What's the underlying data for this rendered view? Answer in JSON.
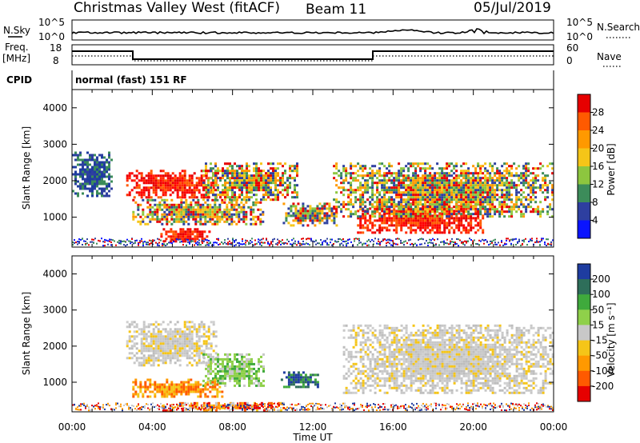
{
  "header": {
    "station": "Christmas Valley West (fitACF)",
    "beam": "Beam 11",
    "date": "05/Jul/2019"
  },
  "strips": {
    "nsky_label": "N.Sky",
    "nsky_ticks": [
      "10^5",
      "10^0"
    ],
    "nsearch_label": "N.Search",
    "nsearch_ticks": [
      "10^5",
      "10^0"
    ],
    "freq_label": "Freq.",
    "freq_unit": "[MHz]",
    "freq_ticks": [
      "18",
      "8"
    ],
    "nave_label": "Nave",
    "nave_ticks": [
      "60",
      "0"
    ],
    "cpid_label": "CPID",
    "cpid_value": "normal (fast) 151 RF"
  },
  "chart_data": [
    {
      "type": "heatmap",
      "name": "power",
      "ylabel": "Slant Range [km]",
      "ylim": [
        180,
        4500
      ],
      "yticks": [
        "4000",
        "3000",
        "2000",
        "1000"
      ],
      "xlabel": "",
      "colorbar_label": "Power [dB]",
      "colorbar_ticks": [
        "28",
        "24",
        "20",
        "16",
        "12",
        "8",
        "4"
      ],
      "colorbar_colors": [
        "#e60000",
        "#ff5a00",
        "#ff9900",
        "#f5c518",
        "#8dc63f",
        "#3c8c5a",
        "#2e3fa0",
        "#0a14ff"
      ],
      "echo_regions": [
        {
          "t": [
            2.7,
            7.2
          ],
          "r": [
            1550,
            2300
          ],
          "level": "high"
        },
        {
          "t": [
            4.4,
            6.8
          ],
          "r": [
            350,
            700
          ],
          "level": "high"
        },
        {
          "t": [
            14.2,
            20.5
          ],
          "r": [
            550,
            1400
          ],
          "level": "high"
        },
        {
          "t": [
            3.0,
            9.5
          ],
          "r": [
            800,
            1500
          ],
          "level": "mid"
        },
        {
          "t": [
            6.5,
            11.2
          ],
          "r": [
            1500,
            2500
          ],
          "level": "mid"
        },
        {
          "t": [
            10.5,
            13.2
          ],
          "r": [
            800,
            1400
          ],
          "level": "mid"
        },
        {
          "t": [
            13.0,
            24.0
          ],
          "r": [
            1000,
            2500
          ],
          "level": "mid"
        },
        {
          "t": [
            0.0,
            2.0
          ],
          "r": [
            1600,
            2800
          ],
          "level": "low"
        }
      ]
    },
    {
      "type": "heatmap",
      "name": "velocity",
      "ylabel": "Slant Range [km]",
      "ylim": [
        180,
        4500
      ],
      "yticks": [
        "4000",
        "3000",
        "2000",
        "1000"
      ],
      "xlabel": "Time UT",
      "xticks": [
        "00:00",
        "04:00",
        "08:00",
        "12:00",
        "16:00",
        "20:00",
        "00:00"
      ],
      "xlim": [
        0,
        24
      ],
      "colorbar_label": "Velocity [m s⁻¹]",
      "colorbar_ticks": [
        "200",
        "100",
        "50",
        "15",
        "-15",
        "-50",
        "-100",
        "-200"
      ],
      "colorbar_colors": [
        "#1e3ca0",
        "#2e6e5a",
        "#3faa3c",
        "#8fd04a",
        "#c8c8c8",
        "#f5c518",
        "#ff9900",
        "#ff5a00",
        "#e60000"
      ],
      "echo_regions": [
        {
          "t": [
            2.7,
            7.2
          ],
          "r": [
            1500,
            2700
          ],
          "level": "ground"
        },
        {
          "t": [
            13.5,
            24.0
          ],
          "r": [
            700,
            2600
          ],
          "level": "ground"
        },
        {
          "t": [
            6.5,
            9.5
          ],
          "r": [
            900,
            1800
          ],
          "level": "green"
        },
        {
          "t": [
            10.4,
            12.3
          ],
          "r": [
            850,
            1300
          ],
          "level": "blue"
        },
        {
          "t": [
            3.0,
            7.5
          ],
          "r": [
            600,
            1100
          ],
          "level": "orange"
        },
        {
          "t": [
            4.5,
            10.5
          ],
          "r": [
            250,
            450
          ],
          "level": "mixed"
        }
      ]
    }
  ]
}
